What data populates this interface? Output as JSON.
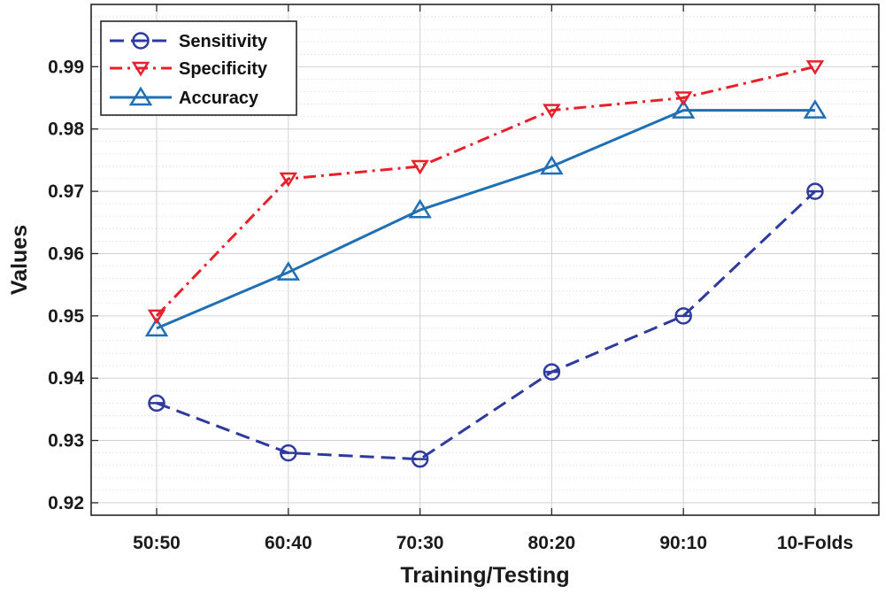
{
  "chart_data": {
    "type": "line",
    "title": "",
    "xlabel": "Training/Testing",
    "ylabel": "Values",
    "categories": [
      "50:50",
      "60:40",
      "70:30",
      "80:20",
      "90:10",
      "10-Folds"
    ],
    "ylim": [
      0.918,
      1.0
    ],
    "yticks": [
      0.92,
      0.93,
      0.94,
      0.95,
      0.96,
      0.97,
      0.98,
      0.99
    ],
    "ytick_labels": [
      "0.92",
      "0.93",
      "0.94",
      "0.95",
      "0.96",
      "0.97",
      "0.98",
      "0.99"
    ],
    "grid": true,
    "legend_position": "top-left",
    "series": [
      {
        "name": "Sensitivity",
        "values": [
          0.936,
          0.928,
          0.927,
          0.941,
          0.95,
          0.97
        ],
        "color": "#2e3a9e",
        "dash": "dashed",
        "marker": "circle"
      },
      {
        "name": "Specificity",
        "values": [
          0.95,
          0.972,
          0.974,
          0.983,
          0.985,
          0.99
        ],
        "color": "#e8202a",
        "dash": "dashdot",
        "marker": "triangle-down"
      },
      {
        "name": "Accuracy",
        "values": [
          0.948,
          0.957,
          0.967,
          0.974,
          0.983,
          0.983
        ],
        "color": "#1f6fb5",
        "dash": "solid",
        "marker": "triangle-up"
      }
    ]
  }
}
